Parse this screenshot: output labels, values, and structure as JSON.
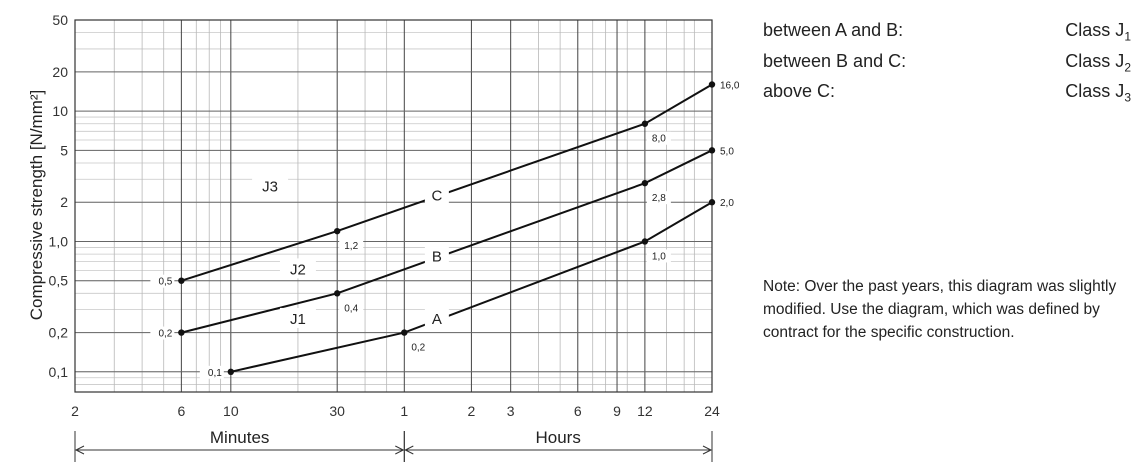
{
  "chart_data": {
    "type": "line",
    "title": "",
    "ylabel": "Compressive strength [N/mm²]",
    "yscale": "log",
    "ylim": [
      0.07,
      50
    ],
    "yticks": [
      {
        "value": 0.1,
        "label": "0,1"
      },
      {
        "value": 0.2,
        "label": "0,2"
      },
      {
        "value": 0.5,
        "label": "0,5"
      },
      {
        "value": 1,
        "label": "1,0"
      },
      {
        "value": 2,
        "label": "2"
      },
      {
        "value": 5,
        "label": "5"
      },
      {
        "value": 10,
        "label": "10"
      },
      {
        "value": 20,
        "label": "20"
      },
      {
        "value": 50,
        "label": "50"
      }
    ],
    "xscale": "log",
    "xunit": "minutes",
    "xlim": [
      2,
      1440
    ],
    "xticks": [
      {
        "value": 2,
        "label": "2"
      },
      {
        "value": 6,
        "label": "6"
      },
      {
        "value": 10,
        "label": "10"
      },
      {
        "value": 30,
        "label": "30"
      },
      {
        "value": 60,
        "label": "1"
      },
      {
        "value": 120,
        "label": "2"
      },
      {
        "value": 180,
        "label": "3"
      },
      {
        "value": 360,
        "label": "6"
      },
      {
        "value": 540,
        "label": "9"
      },
      {
        "value": 720,
        "label": "12"
      },
      {
        "value": 1440,
        "label": "24"
      }
    ],
    "spans": [
      {
        "label": "Minutes",
        "from": 2,
        "to": 60
      },
      {
        "label": "Hours",
        "from": 60,
        "to": 1440
      }
    ],
    "series": [
      {
        "name": "A",
        "points": [
          {
            "x": 10,
            "y": 0.1,
            "label": "0,1"
          },
          {
            "x": 60,
            "y": 0.2,
            "label": "0,2"
          },
          {
            "x": 720,
            "y": 1.0,
            "label": "1,0"
          },
          {
            "x": 1440,
            "y": 2.0,
            "label": "2,0"
          }
        ]
      },
      {
        "name": "B",
        "points": [
          {
            "x": 6,
            "y": 0.2,
            "label": "0,2"
          },
          {
            "x": 30,
            "y": 0.4,
            "label": "0,4"
          },
          {
            "x": 720,
            "y": 2.8,
            "label": "2,8"
          },
          {
            "x": 1440,
            "y": 5.0,
            "label": "5,0"
          }
        ]
      },
      {
        "name": "C",
        "points": [
          {
            "x": 6,
            "y": 0.5,
            "label": "0,5"
          },
          {
            "x": 30,
            "y": 1.2,
            "label": "1,2"
          },
          {
            "x": 720,
            "y": 8.0,
            "label": "8,0"
          },
          {
            "x": 1440,
            "y": 16.0,
            "label": "16,0"
          }
        ]
      }
    ],
    "region_labels": [
      {
        "text": "J3",
        "x": 15,
        "y": 2.6
      },
      {
        "text": "J2",
        "x": 20,
        "y": 0.6
      },
      {
        "text": "J1",
        "x": 20,
        "y": 0.25
      }
    ],
    "grid": true
  },
  "legend": {
    "rows": [
      {
        "text": "between A and B:",
        "cls": "Class J",
        "sub": "1"
      },
      {
        "text": "between B and C:",
        "cls": "Class J",
        "sub": "2"
      },
      {
        "text": "above C:",
        "cls": "Class J",
        "sub": "3"
      }
    ]
  },
  "note": "Note: Over the past years, this diagram was slightly modified. Use the diagram, which was defined by contract for the specific construction."
}
